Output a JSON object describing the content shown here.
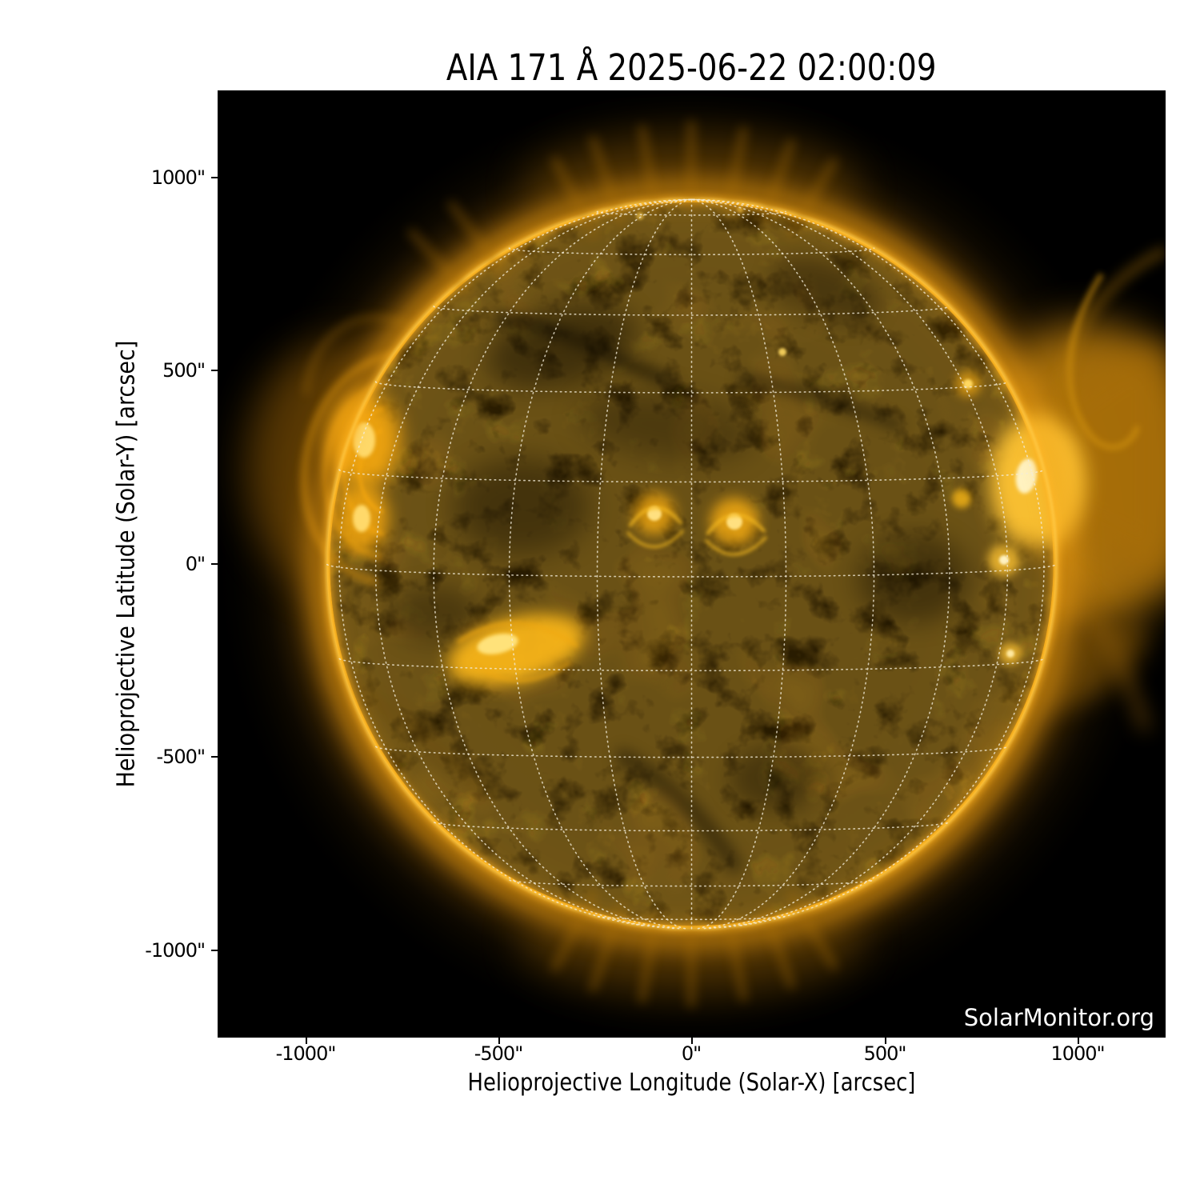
{
  "figure": {
    "title": "AIA 171 Å 2025-06-22 02:00:09",
    "instrument": "AIA 171 Å",
    "datetime": "2025-06-22 02:00:09",
    "watermark": "SolarMonitor.org"
  },
  "axes": {
    "x": {
      "label": "Helioprojective Longitude (Solar-X) [arcsec]",
      "ticks": [
        "-1000\"",
        "-500\"",
        "0\"",
        "500\"",
        "1000\""
      ]
    },
    "y": {
      "label": "Helioprojective Latitude (Solar-Y) [arcsec]",
      "ticks": [
        "1000\"",
        "500\"",
        "0\"",
        "-500\"",
        "-1000\""
      ]
    }
  },
  "colors": {
    "page_background": "#ffffff",
    "plot_background": "#000000",
    "text": "#000000",
    "watermark_text": "#ffffff",
    "grid_overlay": "#f2ecd8",
    "colormap": "AIA 171 gold",
    "disk_base": "#8a6208",
    "limb_rim": "#ffb222",
    "bright_core": "#fff2c0"
  },
  "chart_data": {
    "type": "heatmap",
    "description": "SDO/AIA 171 Angstrom full-disk EUV image of the Sun in the gold AIA colormap with dotted heliographic grid overlay (15 degree spacing), as served by SolarMonitor.org",
    "title": "AIA 171 Å 2025-06-22 02:00:09",
    "xlabel": "Helioprojective Longitude (Solar-X) [arcsec]",
    "ylabel": "Helioprojective Latitude (Solar-Y) [arcsec]",
    "xlim": [
      -1228.8,
      1228.8
    ],
    "ylim": [
      -1228.8,
      1228.8
    ],
    "x_ticks_arcsec": [
      -1000,
      -500,
      0,
      500,
      1000
    ],
    "y_ticks_arcsec": [
      1000,
      500,
      0,
      -500,
      -1000
    ],
    "tick_unit": "arcsec (\")",
    "grid": "dotted heliographic grid, 15 deg spacing",
    "legend": "none",
    "solar_disk": {
      "center_arcsec": [
        0,
        0
      ],
      "radius_arcsec": 945
    },
    "features": [
      {
        "name": "active region with large coronal loop arcade",
        "limb": "east",
        "x_arcsec": -850,
        "y_arcsec": 320
      },
      {
        "name": "active region with loops",
        "limb": "east",
        "x_arcsec": -855,
        "y_arcsec": 120
      },
      {
        "name": "bright active region complex",
        "limb": "disk southeast",
        "x_arcsec": -455,
        "y_arcsec": -222
      },
      {
        "name": "active region loop fan",
        "limb": "disk center-north",
        "x_arcsec": -95,
        "y_arcsec": 130
      },
      {
        "name": "active region loop fan",
        "limb": "disk center-north",
        "x_arcsec": 110,
        "y_arcsec": 110
      },
      {
        "name": "very bright active region with extended coronal glow",
        "limb": "west",
        "x_arcsec": 867,
        "y_arcsec": 228
      },
      {
        "name": "small bright active region",
        "limb": "disk southwest",
        "x_arcsec": 825,
        "y_arcsec": -230
      },
      {
        "name": "dark filament channels",
        "limb": "disk center and south",
        "x_arcsec": 0,
        "y_arcsec": -300
      },
      {
        "name": "polar plumes",
        "limb": "north and south poles",
        "x_arcsec": 0,
        "y_arcsec": 945
      }
    ]
  }
}
